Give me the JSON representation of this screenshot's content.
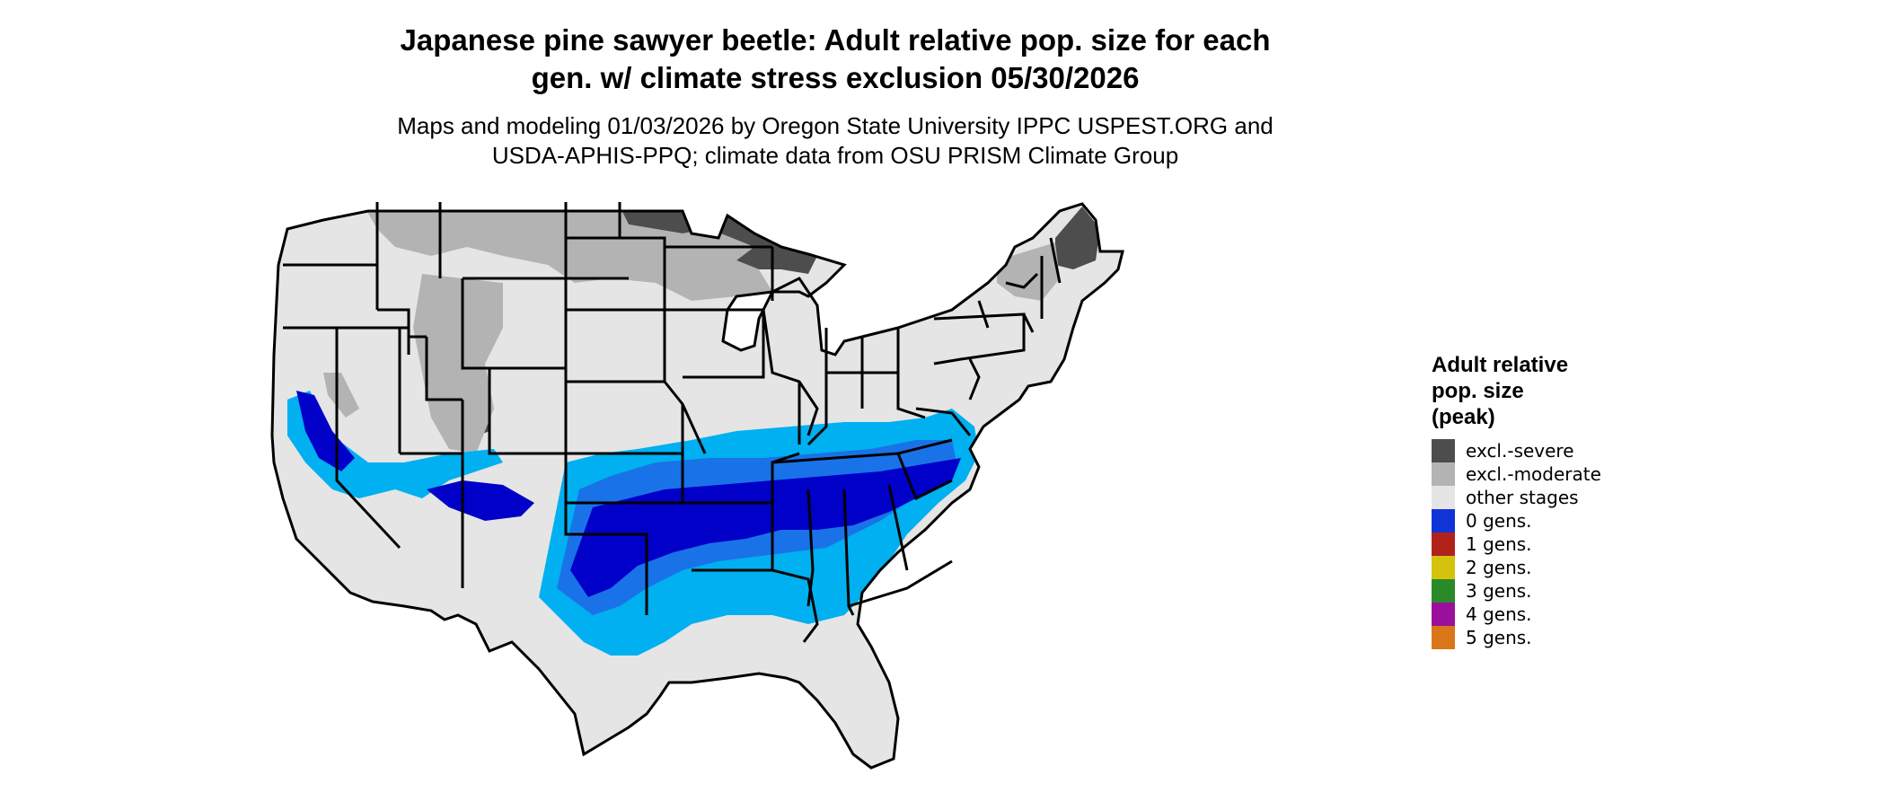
{
  "title": {
    "line1": "Japanese pine sawyer beetle: Adult relative pop. size for each",
    "line2": "gen. w/ climate stress exclusion 05/30/2026"
  },
  "subtitle": {
    "line1": "Maps and modeling 01/03/2026 by Oregon State University IPPC USPEST.ORG and",
    "line2": "USDA-APHIS-PPQ; climate data from OSU PRISM Climate Group"
  },
  "legend": {
    "title_lines": [
      "Adult relative",
      "pop. size",
      "(peak)"
    ],
    "items": [
      {
        "label": "excl.-severe",
        "color": "#4d4d4d"
      },
      {
        "label": "excl.-moderate",
        "color": "#b3b3b3"
      },
      {
        "label": "other stages",
        "color": "#e5e5e5"
      },
      {
        "label": "0 gens.",
        "color": "#1034d6"
      },
      {
        "label": "1 gens.",
        "color": "#b0221a"
      },
      {
        "label": "2 gens.",
        "color": "#d4c20c"
      },
      {
        "label": "3 gens.",
        "color": "#2a8a2a"
      },
      {
        "label": "4 gens.",
        "color": "#9b109b"
      },
      {
        "label": "5 gens.",
        "color": "#d9761a"
      }
    ]
  },
  "map_colors": {
    "background": "#e5e5e5",
    "severe": "#4d4d4d",
    "moderate": "#b3b3b3",
    "zero_gens_dark": "#0000c8",
    "zero_gens_mid": "#1a72e8",
    "zero_gens_light": "#00b0f0",
    "one_gens": "#e84a1a",
    "one_gens_dark": "#b0221a",
    "state_border": "#000000"
  }
}
